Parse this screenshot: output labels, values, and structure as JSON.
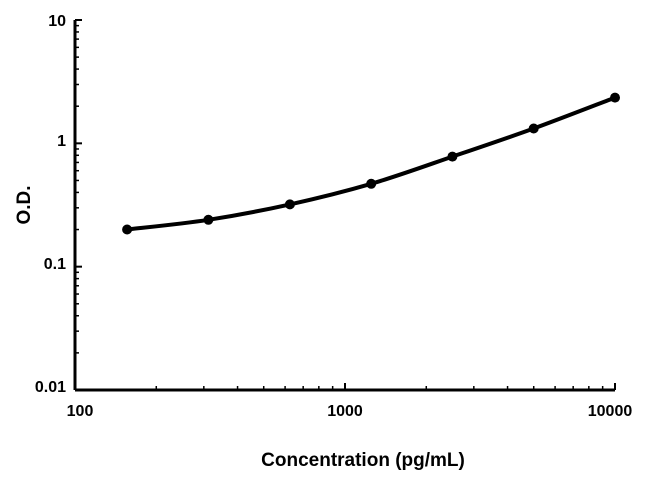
{
  "chart_data": {
    "type": "line",
    "xlabel": "Concentration (pg/mL)",
    "ylabel": "O.D.",
    "xscale": "log",
    "yscale": "log",
    "xlim": [
      100,
      10000
    ],
    "ylim": [
      0.01,
      10
    ],
    "x_ticks": [
      "100",
      "1000",
      "10000"
    ],
    "y_ticks": [
      "0.01",
      "0.1",
      "1",
      "10"
    ],
    "grid": false,
    "legend": "none",
    "series": [
      {
        "x": [
          156,
          312,
          625,
          1250,
          2500,
          5000,
          10000
        ],
        "y": [
          0.2,
          0.24,
          0.32,
          0.47,
          0.78,
          1.32,
          2.35
        ]
      }
    ]
  }
}
